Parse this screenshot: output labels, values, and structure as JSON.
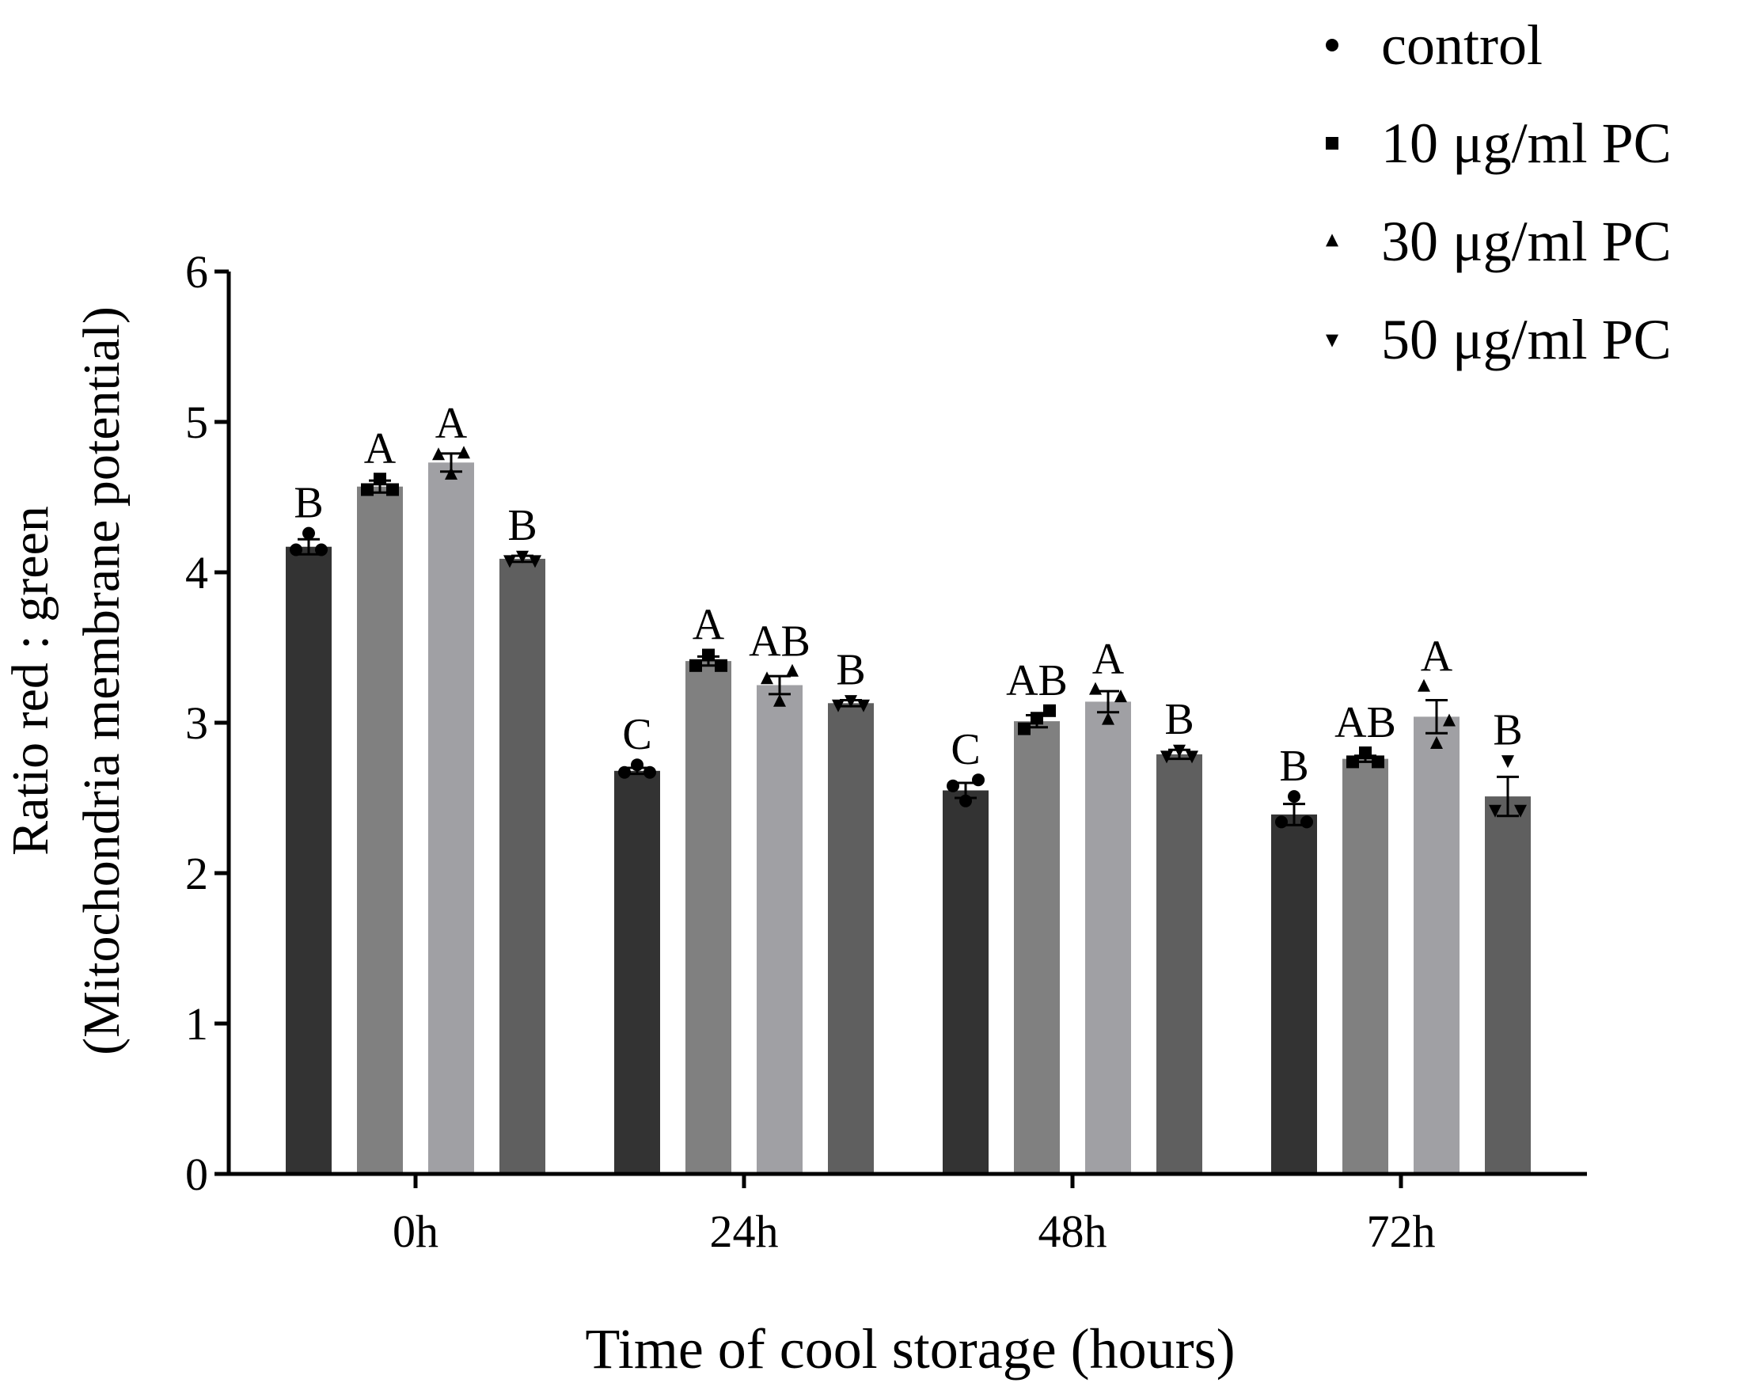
{
  "chart_data": {
    "type": "bar",
    "title": "",
    "xlabel": "Time of cool storage (hours)",
    "ylabel_line1": "Ratio red : green",
    "ylabel_line2": "(Mitochondria membrane potential)",
    "ylim": [
      0,
      6
    ],
    "yticks": [
      "0",
      "1",
      "2",
      "3",
      "4",
      "5",
      "6"
    ],
    "categories": [
      "0h",
      "24h",
      "48h",
      "72h"
    ],
    "legend_position": "top-right",
    "series": [
      {
        "name": "control",
        "marker": "circle",
        "color": "#333333",
        "values": [
          4.17,
          2.68,
          2.55,
          2.39
        ],
        "errors": [
          0.05,
          0.02,
          0.05,
          0.07
        ],
        "points": [
          [
            4.15,
            4.26,
            4.15
          ],
          [
            2.67,
            2.72,
            2.67
          ],
          [
            2.58,
            2.48,
            2.62
          ],
          [
            2.34,
            2.51,
            2.34
          ]
        ],
        "letters": [
          "B",
          "C",
          "C",
          "B"
        ]
      },
      {
        "name": "10 μg/ml PC",
        "marker": "square",
        "color": "#808080",
        "values": [
          4.57,
          3.41,
          3.01,
          2.76
        ],
        "errors": [
          0.04,
          0.03,
          0.04,
          0.02
        ],
        "points": [
          [
            4.55,
            4.62,
            4.55
          ],
          [
            3.38,
            3.45,
            3.38
          ],
          [
            2.96,
            3.03,
            3.08
          ],
          [
            2.74,
            2.8,
            2.74
          ]
        ],
        "letters": [
          "A",
          "A",
          "AB",
          "AB"
        ]
      },
      {
        "name": "30 μg/ml PC",
        "marker": "triangle-up",
        "color": "#a0a0a4",
        "values": [
          4.73,
          3.25,
          3.14,
          3.04
        ],
        "errors": [
          0.06,
          0.06,
          0.07,
          0.11
        ],
        "points": [
          [
            4.78,
            4.65,
            4.79
          ],
          [
            3.29,
            3.14,
            3.34
          ],
          [
            3.22,
            3.02,
            3.17
          ],
          [
            3.24,
            2.86,
            3.01
          ]
        ],
        "letters": [
          "A",
          "AB",
          "A",
          "A"
        ]
      },
      {
        "name": "50 μg/ml PC",
        "marker": "triangle-down",
        "color": "#5f5f5f",
        "values": [
          4.09,
          3.13,
          2.79,
          2.51
        ],
        "errors": [
          0.02,
          0.02,
          0.03,
          0.13
        ],
        "points": [
          [
            4.08,
            4.11,
            4.08
          ],
          [
            3.12,
            3.15,
            3.12
          ],
          [
            2.78,
            2.82,
            2.78
          ],
          [
            2.42,
            2.75,
            2.42
          ]
        ],
        "letters": [
          "B",
          "B",
          "B",
          "B"
        ]
      }
    ]
  }
}
